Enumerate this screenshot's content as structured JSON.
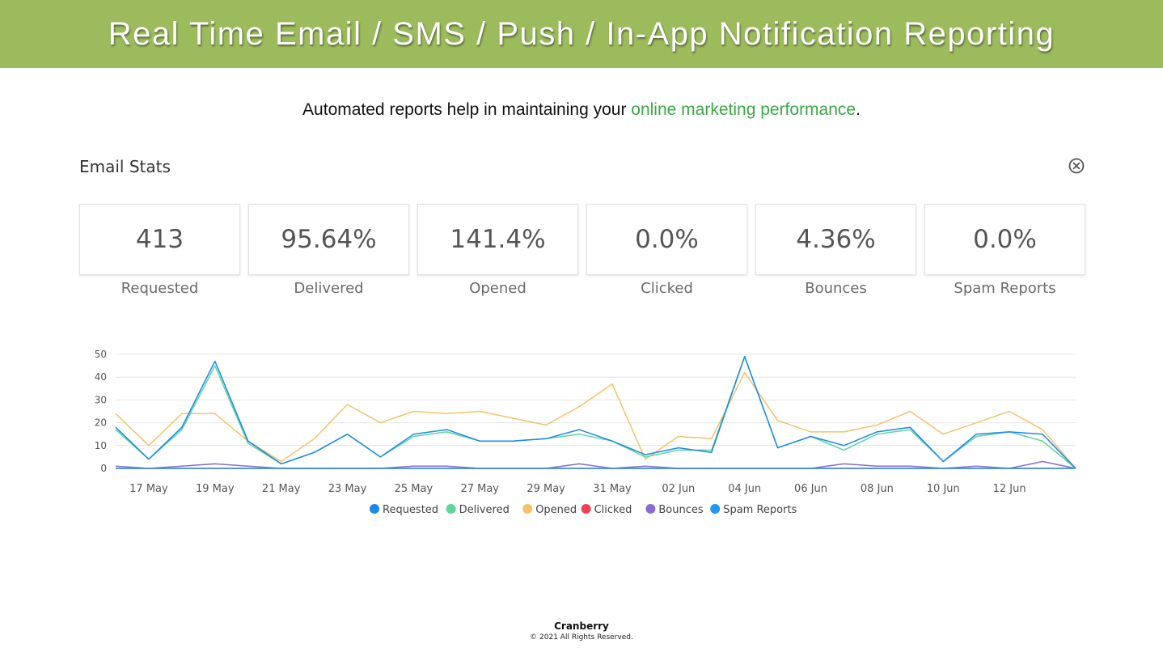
{
  "banner": {
    "title": "Real Time Email / SMS / Push / In-App Notification Reporting"
  },
  "subtitle": {
    "prefix": "Automated reports help in maintaining your ",
    "highlight": "online marketing performance",
    "suffix": "."
  },
  "panel": {
    "title": "Email Stats",
    "close_icon": "close-circle-icon"
  },
  "stats": [
    {
      "value": "413",
      "label": "Requested"
    },
    {
      "value": "95.64%",
      "label": "Delivered"
    },
    {
      "value": "141.4%",
      "label": "Opened"
    },
    {
      "value": "0.0%",
      "label": "Clicked"
    },
    {
      "value": "4.36%",
      "label": "Bounces"
    },
    {
      "value": "0.0%",
      "label": "Spam Reports"
    }
  ],
  "chart_data": {
    "type": "line",
    "x": [
      "16 May",
      "17 May",
      "18 May",
      "19 May",
      "20 May",
      "21 May",
      "22 May",
      "23 May",
      "24 May",
      "25 May",
      "26 May",
      "27 May",
      "28 May",
      "29 May",
      "30 May",
      "31 May",
      "01 Jun",
      "02 Jun",
      "03 Jun",
      "04 Jun",
      "05 Jun",
      "06 Jun",
      "07 Jun",
      "08 Jun",
      "09 Jun",
      "10 Jun",
      "11 Jun",
      "12 Jun",
      "13 Jun",
      "14 Jun"
    ],
    "tick_labels": [
      "17 May",
      "19 May",
      "21 May",
      "23 May",
      "25 May",
      "27 May",
      "29 May",
      "31 May",
      "02 Jun",
      "04 Jun",
      "06 Jun",
      "08 Jun",
      "10 Jun",
      "12 Jun"
    ],
    "ylim": [
      0,
      50
    ],
    "yticks": [
      "0",
      "10",
      "20",
      "30",
      "40",
      "50"
    ],
    "grid": true,
    "legend_position": "bottom",
    "series": [
      {
        "name": "Requested",
        "color": "#1e88e5",
        "values": [
          18,
          4,
          18,
          47,
          12,
          2,
          7,
          15,
          5,
          15,
          17,
          12,
          12,
          13,
          17,
          12,
          6,
          9,
          7,
          49,
          9,
          14,
          10,
          16,
          18,
          3,
          15,
          16,
          15,
          0
        ]
      },
      {
        "name": "Delivered",
        "color": "#5cd69b",
        "values": [
          17,
          4,
          17,
          45,
          11,
          2,
          7,
          15,
          5,
          14,
          16,
          12,
          12,
          13,
          15,
          12,
          5,
          8,
          8,
          49,
          9,
          14,
          8,
          15,
          17,
          3,
          14,
          16,
          12,
          0
        ]
      },
      {
        "name": "Opened",
        "color": "#f5c26b",
        "values": [
          24,
          10,
          24,
          24,
          12,
          3,
          13,
          28,
          20,
          25,
          24,
          25,
          22,
          19,
          27,
          37,
          4,
          14,
          13,
          42,
          21,
          16,
          16,
          19,
          25,
          15,
          20,
          25,
          17,
          0
        ]
      },
      {
        "name": "Clicked",
        "color": "#e8445a",
        "values": [
          0,
          0,
          0,
          0,
          0,
          0,
          0,
          0,
          0,
          0,
          0,
          0,
          0,
          0,
          0,
          0,
          0,
          0,
          0,
          0,
          0,
          0,
          0,
          0,
          0,
          0,
          0,
          0,
          0,
          0
        ]
      },
      {
        "name": "Bounces",
        "color": "#8a6bd1",
        "values": [
          1,
          0,
          1,
          2,
          1,
          0,
          0,
          0,
          0,
          1,
          1,
          0,
          0,
          0,
          2,
          0,
          1,
          0,
          0,
          0,
          0,
          0,
          2,
          1,
          1,
          0,
          1,
          0,
          3,
          0
        ]
      },
      {
        "name": "Spam Reports",
        "color": "#2196f3",
        "values": [
          0,
          0,
          0,
          0,
          0,
          0,
          0,
          0,
          0,
          0,
          0,
          0,
          0,
          0,
          0,
          0,
          0,
          0,
          0,
          0,
          0,
          0,
          0,
          0,
          0,
          0,
          0,
          0,
          0,
          0
        ]
      }
    ]
  },
  "footer": {
    "brand": "Cranberry",
    "copyright": "© 2021 All Rights Reserved."
  }
}
